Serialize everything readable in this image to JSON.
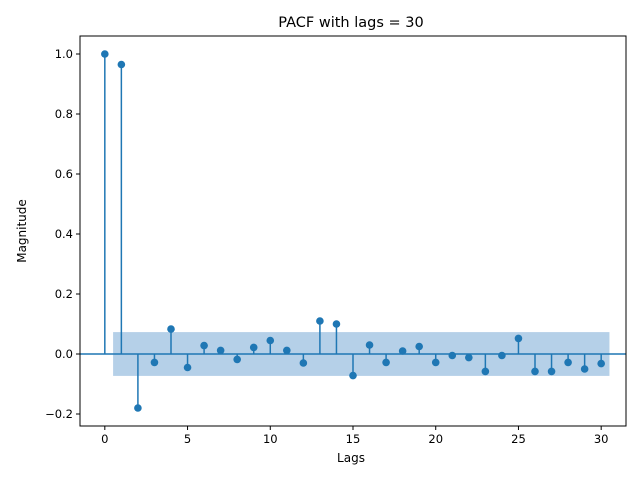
{
  "chart_data": {
    "type": "scatter",
    "subtype": "stem",
    "title": "PACF with lags = 30",
    "xlabel": "Lags",
    "ylabel": "Magnitude",
    "xlim": [
      -1.5,
      31.5
    ],
    "ylim": [
      -0.24,
      1.06
    ],
    "x_ticks": [
      0,
      5,
      10,
      15,
      20,
      25,
      30
    ],
    "y_ticks": [
      -0.2,
      0.0,
      0.2,
      0.4,
      0.6,
      0.8,
      1.0
    ],
    "y_tick_labels": [
      "−0.2",
      "0.0",
      "0.2",
      "0.4",
      "0.6",
      "0.8",
      "1.0"
    ],
    "x": [
      0,
      1,
      2,
      3,
      4,
      5,
      6,
      7,
      8,
      9,
      10,
      11,
      12,
      13,
      14,
      15,
      16,
      17,
      18,
      19,
      20,
      21,
      22,
      23,
      24,
      25,
      26,
      27,
      28,
      29,
      30
    ],
    "values": [
      1.0,
      0.965,
      -0.18,
      -0.028,
      0.083,
      -0.045,
      0.028,
      0.012,
      -0.018,
      0.022,
      0.045,
      0.012,
      -0.03,
      0.11,
      0.1,
      -0.072,
      0.03,
      -0.028,
      0.01,
      0.025,
      -0.028,
      -0.005,
      -0.012,
      -0.058,
      -0.005,
      0.052,
      -0.058,
      -0.058,
      -0.028,
      -0.05,
      -0.032
    ],
    "confidence_band": {
      "x_range": [
        0.5,
        30.5
      ],
      "y_range": [
        -0.073,
        0.073
      ]
    },
    "grid": false,
    "legend": "none",
    "colors": {
      "marker": "#1f77b4",
      "band": "#b5d0e8",
      "text": "#000000"
    }
  }
}
